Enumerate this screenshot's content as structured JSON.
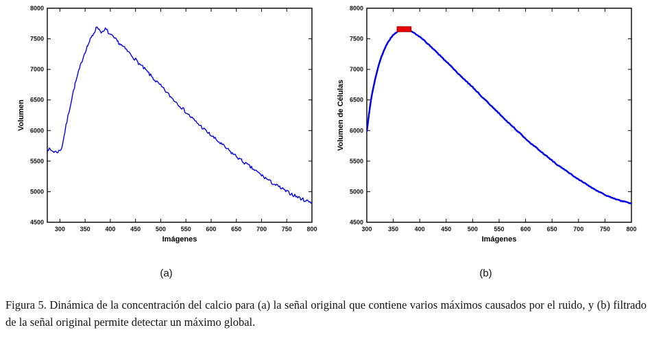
{
  "figure": {
    "sublabels": [
      "(a)",
      "(b)"
    ],
    "caption": "Figura 5. Dinámica de la concentración del calcio para (a) la señal original que contiene varios máximos causados por el ruido, y (b) filtrado de la señal original permite detectar un máximo global."
  },
  "chart_data": [
    {
      "id": "a",
      "type": "line",
      "title": "",
      "xlabel": "Imágenes",
      "ylabel": "Volumen",
      "xlim": [
        275,
        800
      ],
      "ylim": [
        4500,
        8000
      ],
      "xticks": [
        300,
        350,
        400,
        450,
        500,
        550,
        600,
        650,
        700,
        750,
        800
      ],
      "yticks": [
        4500,
        5000,
        5500,
        6000,
        6500,
        7000,
        7500,
        8000
      ],
      "line_color": "#0000ee",
      "line_width": 1.4,
      "noise_amplitude": 28,
      "noise_seed": 7,
      "points": [
        [
          275,
          5700
        ],
        [
          282,
          5680
        ],
        [
          288,
          5655
        ],
        [
          294,
          5650
        ],
        [
          300,
          5670
        ],
        [
          304,
          5730
        ],
        [
          308,
          5900
        ],
        [
          312,
          6070
        ],
        [
          316,
          6230
        ],
        [
          320,
          6390
        ],
        [
          325,
          6580
        ],
        [
          330,
          6750
        ],
        [
          335,
          6900
        ],
        [
          340,
          7040
        ],
        [
          345,
          7170
        ],
        [
          350,
          7290
        ],
        [
          355,
          7390
        ],
        [
          360,
          7480
        ],
        [
          365,
          7560
        ],
        [
          370,
          7640
        ],
        [
          374,
          7700
        ],
        [
          378,
          7650
        ],
        [
          382,
          7620
        ],
        [
          386,
          7600
        ],
        [
          390,
          7660
        ],
        [
          394,
          7630
        ],
        [
          398,
          7580
        ],
        [
          402,
          7550
        ],
        [
          406,
          7520
        ],
        [
          410,
          7490
        ],
        [
          415,
          7450
        ],
        [
          420,
          7410
        ],
        [
          430,
          7330
        ],
        [
          440,
          7250
        ],
        [
          450,
          7160
        ],
        [
          460,
          7070
        ],
        [
          470,
          6990
        ],
        [
          480,
          6900
        ],
        [
          490,
          6810
        ],
        [
          500,
          6730
        ],
        [
          510,
          6640
        ],
        [
          520,
          6550
        ],
        [
          530,
          6470
        ],
        [
          540,
          6390
        ],
        [
          550,
          6300
        ],
        [
          560,
          6220
        ],
        [
          570,
          6140
        ],
        [
          580,
          6070
        ],
        [
          590,
          5990
        ],
        [
          600,
          5920
        ],
        [
          610,
          5850
        ],
        [
          620,
          5780
        ],
        [
          630,
          5710
        ],
        [
          640,
          5640
        ],
        [
          650,
          5580
        ],
        [
          660,
          5510
        ],
        [
          670,
          5450
        ],
        [
          680,
          5390
        ],
        [
          690,
          5330
        ],
        [
          700,
          5270
        ],
        [
          710,
          5210
        ],
        [
          720,
          5150
        ],
        [
          730,
          5100
        ],
        [
          740,
          5050
        ],
        [
          750,
          5000
        ],
        [
          760,
          4960
        ],
        [
          770,
          4920
        ],
        [
          780,
          4880
        ],
        [
          790,
          4850
        ],
        [
          800,
          4830
        ]
      ]
    },
    {
      "id": "b",
      "type": "line",
      "title": "",
      "xlabel": "Imágenes",
      "ylabel": "Volumen de Células",
      "xlim": [
        300,
        800
      ],
      "ylim": [
        4500,
        8000
      ],
      "xticks": [
        300,
        350,
        400,
        450,
        500,
        550,
        600,
        650,
        700,
        750,
        800
      ],
      "yticks": [
        4500,
        5000,
        5500,
        6000,
        6500,
        7000,
        7500,
        8000
      ],
      "line_color": "#0000ee",
      "line_width": 2.5,
      "noise_amplitude": 7,
      "noise_seed": 3,
      "max_marker": {
        "x_range": [
          357,
          384
        ],
        "y_range": [
          7615,
          7700
        ],
        "color": "#e60000"
      },
      "points": [
        [
          300,
          5980
        ],
        [
          302,
          6120
        ],
        [
          304,
          6260
        ],
        [
          306,
          6390
        ],
        [
          308,
          6500
        ],
        [
          310,
          6600
        ],
        [
          313,
          6730
        ],
        [
          316,
          6850
        ],
        [
          320,
          6990
        ],
        [
          324,
          7110
        ],
        [
          328,
          7210
        ],
        [
          332,
          7300
        ],
        [
          336,
          7380
        ],
        [
          340,
          7440
        ],
        [
          345,
          7510
        ],
        [
          350,
          7560
        ],
        [
          355,
          7600
        ],
        [
          360,
          7630
        ],
        [
          365,
          7650
        ],
        [
          370,
          7655
        ],
        [
          375,
          7650
        ],
        [
          380,
          7640
        ],
        [
          385,
          7620
        ],
        [
          390,
          7590
        ],
        [
          395,
          7560
        ],
        [
          400,
          7530
        ],
        [
          410,
          7460
        ],
        [
          420,
          7380
        ],
        [
          430,
          7300
        ],
        [
          440,
          7210
        ],
        [
          450,
          7130
        ],
        [
          460,
          7040
        ],
        [
          470,
          6950
        ],
        [
          480,
          6870
        ],
        [
          490,
          6790
        ],
        [
          500,
          6710
        ],
        [
          510,
          6620
        ],
        [
          520,
          6530
        ],
        [
          530,
          6450
        ],
        [
          540,
          6360
        ],
        [
          550,
          6280
        ],
        [
          560,
          6190
        ],
        [
          570,
          6110
        ],
        [
          580,
          6030
        ],
        [
          590,
          5950
        ],
        [
          600,
          5870
        ],
        [
          610,
          5790
        ],
        [
          620,
          5720
        ],
        [
          630,
          5650
        ],
        [
          640,
          5580
        ],
        [
          650,
          5510
        ],
        [
          660,
          5440
        ],
        [
          670,
          5380
        ],
        [
          680,
          5320
        ],
        [
          690,
          5260
        ],
        [
          700,
          5200
        ],
        [
          710,
          5150
        ],
        [
          720,
          5090
        ],
        [
          730,
          5040
        ],
        [
          740,
          4990
        ],
        [
          750,
          4950
        ],
        [
          760,
          4910
        ],
        [
          770,
          4880
        ],
        [
          780,
          4850
        ],
        [
          790,
          4830
        ],
        [
          800,
          4810
        ]
      ]
    }
  ]
}
